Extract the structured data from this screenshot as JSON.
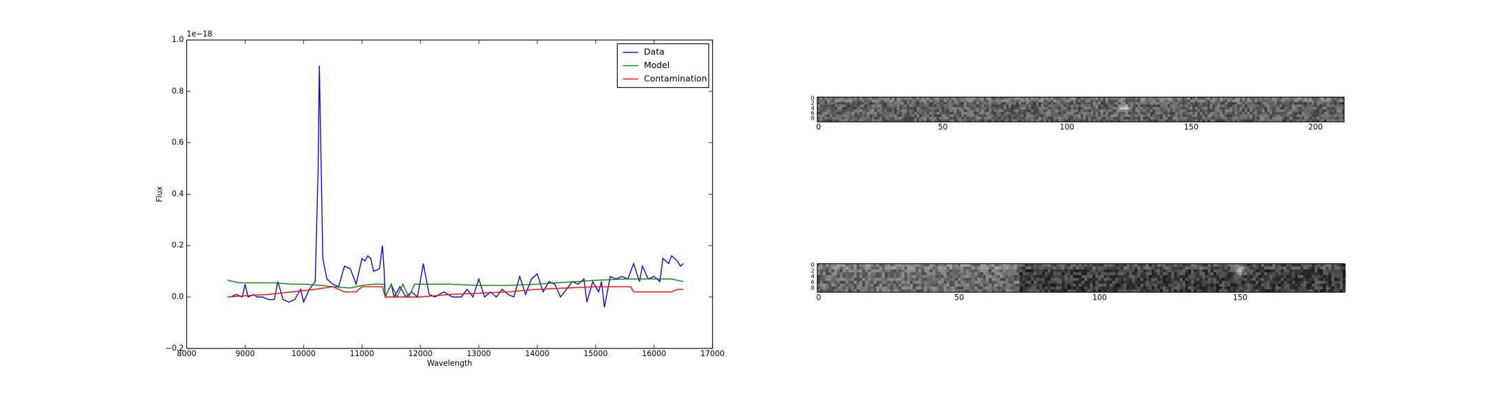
{
  "chart_data": [
    {
      "type": "line",
      "xlabel": "Wavelength",
      "ylabel": "Flux",
      "y_offset_label": "1e−18",
      "xlim": [
        8000,
        17000
      ],
      "xticks": [
        8000,
        9000,
        10000,
        11000,
        12000,
        13000,
        14000,
        15000,
        16000,
        17000
      ],
      "ylim": [
        -0.2,
        1.0
      ],
      "yticks": [
        {
          "value": -0.2,
          "label": "−0.2"
        },
        {
          "value": 0,
          "label": "0.0"
        },
        0.2,
        0.4,
        0.6,
        0.8,
        {
          "value": 1,
          "label": "1.0"
        }
      ],
      "legend": "upper right",
      "series": [
        {
          "name": "Data",
          "color": "#0000ff",
          "x": [
            8750,
            8850,
            8950,
            9000,
            9050,
            9150,
            9200,
            9300,
            9400,
            9500,
            9560,
            9650,
            9750,
            9850,
            9950,
            10000,
            10100,
            10200,
            10250,
            10270,
            10330,
            10400,
            10500,
            10600,
            10700,
            10800,
            10900,
            11000,
            11050,
            11100,
            11150,
            11200,
            11300,
            11350,
            11380,
            11400,
            11500,
            11550,
            11650,
            11750,
            11850,
            11950,
            12050,
            12150,
            12250,
            12400,
            12550,
            12700,
            12800,
            12900,
            13000,
            13100,
            13200,
            13300,
            13400,
            13500,
            13600,
            13700,
            13800,
            13900,
            14000,
            14100,
            14200,
            14300,
            14400,
            14500,
            14600,
            14700,
            14800,
            14850,
            14950,
            15050,
            15100,
            15150,
            15250,
            15350,
            15450,
            15550,
            15650,
            15750,
            15800,
            15900,
            16000,
            16100,
            16150,
            16250,
            16300,
            16400,
            16450,
            16500
          ],
          "values": [
            0.0,
            0.01,
            0.0,
            0.05,
            0.0,
            0.01,
            0.0,
            0.0,
            -0.01,
            -0.01,
            0.06,
            -0.01,
            -0.02,
            -0.01,
            0.03,
            -0.02,
            0.03,
            0.06,
            0.5,
            0.9,
            0.15,
            0.07,
            0.05,
            0.04,
            0.12,
            0.11,
            0.05,
            0.15,
            0.14,
            0.16,
            0.15,
            0.1,
            0.11,
            0.2,
            0.1,
            0.0,
            0.05,
            0.0,
            0.04,
            0.0,
            0.02,
            0.0,
            0.13,
            0.01,
            0.0,
            0.02,
            0.0,
            0.0,
            0.03,
            0.0,
            0.07,
            0.0,
            0.02,
            0.0,
            0.03,
            0.01,
            0.0,
            0.08,
            0.01,
            0.07,
            0.09,
            0.02,
            0.06,
            0.05,
            0.0,
            0.03,
            0.06,
            0.05,
            0.07,
            -0.02,
            0.06,
            0.02,
            0.06,
            -0.04,
            0.08,
            0.07,
            0.08,
            0.07,
            0.13,
            0.06,
            0.12,
            0.07,
            0.08,
            0.06,
            0.15,
            0.13,
            0.16,
            0.14,
            0.12,
            0.13
          ]
        },
        {
          "name": "Model",
          "color": "#008000",
          "x": [
            8700,
            8800,
            8900,
            9200,
            9500,
            9800,
            10000,
            10300,
            10500,
            10800,
            11000,
            11200,
            11380,
            11400,
            11500,
            11600,
            11700,
            11800,
            11900,
            12000,
            12500,
            13000,
            13500,
            14000,
            14300,
            14700,
            15000,
            15500,
            16000,
            16300,
            16500
          ],
          "values": [
            0.065,
            0.06,
            0.055,
            0.055,
            0.055,
            0.05,
            0.05,
            0.045,
            0.04,
            0.035,
            0.045,
            0.05,
            0.05,
            0.0,
            0.05,
            0.0,
            0.05,
            0.0,
            0.05,
            0.05,
            0.05,
            0.045,
            0.045,
            0.05,
            0.055,
            0.06,
            0.065,
            0.07,
            0.07,
            0.07,
            0.06
          ]
        },
        {
          "name": "Contamination",
          "color": "#ff0000",
          "x": [
            8700,
            9000,
            9400,
            9800,
            10200,
            10500,
            10700,
            10900,
            11000,
            11350,
            11400,
            12000,
            12500,
            13000,
            13500,
            14000,
            14500,
            15000,
            15600,
            15650,
            16000,
            16300,
            16400,
            16500
          ],
          "values": [
            0.0,
            0.005,
            0.01,
            0.02,
            0.03,
            0.04,
            0.02,
            0.02,
            0.04,
            0.04,
            0.0,
            0.0,
            0.01,
            0.015,
            0.02,
            0.03,
            0.035,
            0.04,
            0.04,
            0.02,
            0.02,
            0.02,
            0.03,
            0.03
          ]
        }
      ]
    },
    {
      "type": "image",
      "xlim": [
        -0.5,
        211.5
      ],
      "xticks": [
        0,
        50,
        100,
        150,
        200
      ],
      "ylim": [
        9.5,
        -0.5
      ],
      "yticks": [
        0,
        2,
        4,
        6,
        8
      ]
    },
    {
      "type": "image",
      "xlim": [
        -0.5,
        187
      ],
      "xticks": [
        0,
        50,
        100,
        150
      ],
      "ylim": [
        9.5,
        -0.5
      ],
      "yticks": [
        0,
        2,
        4,
        6,
        8
      ]
    }
  ]
}
